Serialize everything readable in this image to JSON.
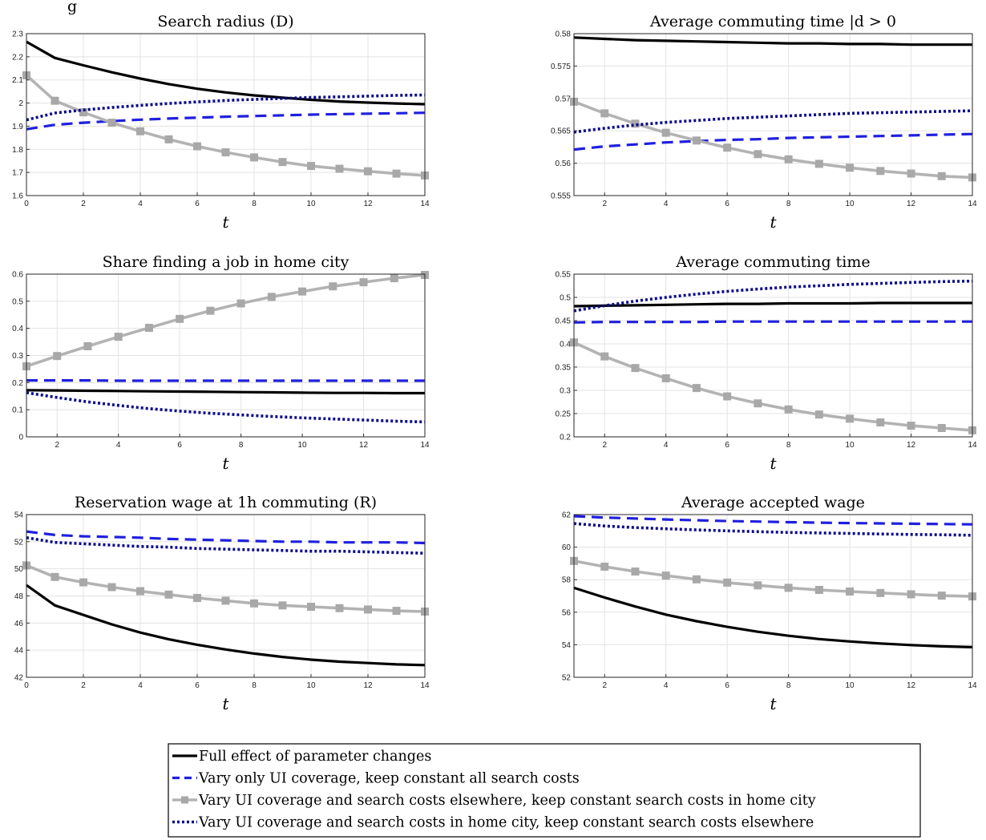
{
  "figure_title_fragment": "g",
  "chart_data": [
    {
      "type": "line",
      "title": "Search radius (D)",
      "xlabel": "t",
      "ylabel": "",
      "xlim": [
        0,
        14
      ],
      "ylim": [
        1.6,
        2.3
      ],
      "xticks": [
        0,
        2,
        4,
        6,
        8,
        10,
        12,
        14
      ],
      "yticks": [
        1.6,
        1.7,
        1.8,
        1.9,
        2,
        2.1,
        2.2,
        2.3
      ],
      "grid": true,
      "x": [
        0,
        1,
        2,
        3,
        4,
        5,
        6,
        7,
        8,
        9,
        10,
        11,
        12,
        13,
        14
      ],
      "series": [
        {
          "name": "Full effect of parameter changes",
          "style": "solid",
          "color": "#000000",
          "values": [
            2.265,
            2.195,
            2.163,
            2.133,
            2.106,
            2.082,
            2.062,
            2.046,
            2.033,
            2.023,
            2.014,
            2.007,
            2.002,
            1.998,
            1.995
          ]
        },
        {
          "name": "Vary only UI coverage, keep constant all search costs",
          "style": "dashed",
          "color": "#1f1fdf",
          "values": [
            1.887,
            1.906,
            1.915,
            1.922,
            1.928,
            1.933,
            1.937,
            1.941,
            1.944,
            1.947,
            1.95,
            1.952,
            1.954,
            1.956,
            1.958
          ]
        },
        {
          "name": "Vary UI coverage and search costs elsewhere, keep constant search costs in home city",
          "style": "markers",
          "color": "#b3b3b3",
          "values": [
            2.12,
            2.01,
            1.96,
            1.915,
            1.878,
            1.843,
            1.813,
            1.787,
            1.765,
            1.745,
            1.728,
            1.716,
            1.705,
            1.695,
            1.687
          ]
        },
        {
          "name": "Vary UI coverage and search costs in home city, keep constant search costs elsewhere",
          "style": "dotted",
          "color": "#0a0a8c",
          "values": [
            1.927,
            1.957,
            1.97,
            1.981,
            1.99,
            1.998,
            2.005,
            2.011,
            2.016,
            2.02,
            2.024,
            2.027,
            2.03,
            2.033,
            2.035
          ]
        }
      ]
    },
    {
      "type": "line",
      "title": "Average commuting time |d > 0",
      "xlabel": "t",
      "ylabel": "",
      "xlim": [
        1,
        14
      ],
      "ylim": [
        0.555,
        0.58
      ],
      "xticks": [
        2,
        4,
        6,
        8,
        10,
        12,
        14
      ],
      "yticks": [
        0.555,
        0.56,
        0.565,
        0.57,
        0.575,
        0.58
      ],
      "grid": true,
      "x": [
        1,
        2,
        3,
        4,
        5,
        6,
        7,
        8,
        9,
        10,
        11,
        12,
        13,
        14
      ],
      "series": [
        {
          "name": "Full effect of parameter changes",
          "style": "solid",
          "color": "#000000",
          "values": [
            0.5794,
            0.5792,
            0.579,
            0.5789,
            0.5788,
            0.5787,
            0.5786,
            0.5785,
            0.5785,
            0.5784,
            0.5784,
            0.5783,
            0.5783,
            0.5783
          ]
        },
        {
          "name": "Vary only UI coverage, keep constant all search costs",
          "style": "dashed",
          "color": "#1f1fdf",
          "values": [
            0.5621,
            0.5626,
            0.5629,
            0.5632,
            0.5634,
            0.5636,
            0.5637,
            0.5639,
            0.564,
            0.5641,
            0.5642,
            0.5643,
            0.5644,
            0.5645
          ]
        },
        {
          "name": "Vary UI coverage and search costs elsewhere, keep constant search costs in home city",
          "style": "markers",
          "color": "#b3b3b3",
          "values": [
            0.5695,
            0.5677,
            0.5661,
            0.5647,
            0.5635,
            0.5624,
            0.5614,
            0.5606,
            0.5599,
            0.5593,
            0.5588,
            0.5584,
            0.558,
            0.5578
          ]
        },
        {
          "name": "Vary UI coverage and search costs in home city, keep constant search costs elsewhere",
          "style": "dotted",
          "color": "#0a0a8c",
          "values": [
            0.5648,
            0.5654,
            0.5659,
            0.5663,
            0.5666,
            0.5669,
            0.5671,
            0.5673,
            0.5675,
            0.5677,
            0.5678,
            0.5679,
            0.568,
            0.5681
          ]
        }
      ]
    },
    {
      "type": "line",
      "title": "Share finding a job in home city",
      "xlabel": "t",
      "ylabel": "",
      "xlim": [
        1,
        14
      ],
      "ylim": [
        0,
        0.6
      ],
      "xticks": [
        2,
        4,
        6,
        8,
        10,
        12,
        14
      ],
      "yticks": [
        0,
        0.1,
        0.2,
        0.3,
        0.4,
        0.5,
        0.6
      ],
      "grid": true,
      "x": [
        1,
        2,
        3,
        4,
        5,
        6,
        7,
        8,
        9,
        10,
        11,
        12,
        13,
        14
      ],
      "series": [
        {
          "name": "Full effect of parameter changes",
          "style": "solid",
          "color": "#000000",
          "values": [
            0.172,
            0.171,
            0.17,
            0.169,
            0.168,
            0.167,
            0.166,
            0.165,
            0.164,
            0.163,
            0.162,
            0.162,
            0.161,
            0.161
          ]
        },
        {
          "name": "Vary only UI coverage, keep constant all search costs",
          "style": "dashed",
          "color": "#1f1fdf",
          "values": [
            0.208,
            0.208,
            0.208,
            0.207,
            0.207,
            0.207,
            0.207,
            0.207,
            0.207,
            0.207,
            0.207,
            0.207,
            0.207,
            0.207
          ]
        },
        {
          "name": "Vary UI coverage and search costs elsewhere, keep constant search costs in home city",
          "style": "markers",
          "color": "#b3b3b3",
          "values": [
            0.26,
            0.298,
            0.334,
            0.369,
            0.402,
            0.435,
            0.465,
            0.492,
            0.516,
            0.536,
            0.555,
            0.57,
            0.585,
            0.597
          ]
        },
        {
          "name": "Vary UI coverage and search costs in home city, keep constant search costs elsewhere",
          "style": "dotted",
          "color": "#0a0a8c",
          "values": [
            0.163,
            0.145,
            0.129,
            0.116,
            0.104,
            0.095,
            0.087,
            0.081,
            0.075,
            0.07,
            0.066,
            0.062,
            0.058,
            0.055
          ]
        }
      ]
    },
    {
      "type": "line",
      "title": "Average commuting time",
      "xlabel": "t",
      "ylabel": "",
      "xlim": [
        1,
        14
      ],
      "ylim": [
        0.2,
        0.55
      ],
      "xticks": [
        2,
        4,
        6,
        8,
        10,
        12,
        14
      ],
      "yticks": [
        0.2,
        0.25,
        0.3,
        0.35,
        0.4,
        0.45,
        0.5,
        0.55
      ],
      "grid": true,
      "x": [
        1,
        2,
        3,
        4,
        5,
        6,
        7,
        8,
        9,
        10,
        11,
        12,
        13,
        14
      ],
      "series": [
        {
          "name": "Full effect of parameter changes",
          "style": "solid",
          "color": "#000000",
          "values": [
            0.481,
            0.482,
            0.483,
            0.484,
            0.485,
            0.486,
            0.486,
            0.487,
            0.487,
            0.487,
            0.488,
            0.488,
            0.488,
            0.488
          ]
        },
        {
          "name": "Vary only UI coverage, keep constant all search costs",
          "style": "dashed",
          "color": "#1f1fdf",
          "values": [
            0.446,
            0.447,
            0.447,
            0.447,
            0.447,
            0.448,
            0.448,
            0.448,
            0.448,
            0.448,
            0.448,
            0.448,
            0.448,
            0.448
          ]
        },
        {
          "name": "Vary UI coverage and search costs elsewhere, keep constant search costs in home city",
          "style": "markers",
          "color": "#b3b3b3",
          "values": [
            0.403,
            0.373,
            0.348,
            0.326,
            0.305,
            0.287,
            0.272,
            0.259,
            0.248,
            0.239,
            0.231,
            0.224,
            0.219,
            0.214
          ]
        },
        {
          "name": "Vary UI coverage and search costs in home city, keep constant search costs elsewhere",
          "style": "dotted",
          "color": "#0a0a8c",
          "values": [
            0.471,
            0.482,
            0.492,
            0.5,
            0.507,
            0.513,
            0.518,
            0.522,
            0.525,
            0.528,
            0.53,
            0.532,
            0.534,
            0.535
          ]
        }
      ]
    },
    {
      "type": "line",
      "title": "Reservation wage at 1h commuting (R)",
      "xlabel": "t",
      "ylabel": "",
      "xlim": [
        0,
        14
      ],
      "ylim": [
        42,
        54
      ],
      "xticks": [
        0,
        2,
        4,
        6,
        8,
        10,
        12,
        14
      ],
      "yticks": [
        42,
        44,
        46,
        48,
        50,
        52,
        54
      ],
      "grid": true,
      "x": [
        0,
        1,
        2,
        3,
        4,
        5,
        6,
        7,
        8,
        9,
        10,
        11,
        12,
        13,
        14
      ],
      "series": [
        {
          "name": "Full effect of parameter changes",
          "style": "solid",
          "color": "#000000",
          "values": [
            48.8,
            47.3,
            46.6,
            45.9,
            45.3,
            44.8,
            44.4,
            44.05,
            43.75,
            43.5,
            43.3,
            43.15,
            43.05,
            42.95,
            42.9
          ]
        },
        {
          "name": "Vary only UI coverage, keep constant all search costs",
          "style": "dashed",
          "color": "#1f1fdf",
          "values": [
            52.75,
            52.5,
            52.4,
            52.35,
            52.3,
            52.2,
            52.15,
            52.1,
            52.05,
            52.0,
            52.0,
            51.95,
            51.95,
            51.95,
            51.9
          ]
        },
        {
          "name": "Vary UI coverage and search costs elsewhere, keep constant search costs in home city",
          "style": "markers",
          "color": "#b3b3b3",
          "values": [
            50.25,
            49.4,
            49.0,
            48.65,
            48.35,
            48.1,
            47.85,
            47.65,
            47.45,
            47.3,
            47.2,
            47.1,
            47.0,
            46.9,
            46.85
          ]
        },
        {
          "name": "Vary UI coverage and search costs in home city, keep constant search costs elsewhere",
          "style": "dotted",
          "color": "#0a0a8c",
          "values": [
            52.3,
            51.95,
            51.85,
            51.75,
            51.65,
            51.6,
            51.5,
            51.45,
            51.4,
            51.35,
            51.3,
            51.3,
            51.25,
            51.2,
            51.15
          ]
        }
      ]
    },
    {
      "type": "line",
      "title": "Average accepted wage",
      "xlabel": "t",
      "ylabel": "",
      "xlim": [
        1,
        14
      ],
      "ylim": [
        52,
        62
      ],
      "xticks": [
        2,
        4,
        6,
        8,
        10,
        12,
        14
      ],
      "yticks": [
        52,
        54,
        56,
        58,
        60,
        62
      ],
      "grid": true,
      "x": [
        1,
        2,
        3,
        4,
        5,
        6,
        7,
        8,
        9,
        10,
        11,
        12,
        13,
        14
      ],
      "series": [
        {
          "name": "Full effect of parameter changes",
          "style": "solid",
          "color": "#000000",
          "values": [
            57.5,
            56.9,
            56.35,
            55.85,
            55.45,
            55.1,
            54.8,
            54.55,
            54.35,
            54.2,
            54.08,
            53.98,
            53.9,
            53.85
          ]
        },
        {
          "name": "Vary only UI coverage, keep constant all search costs",
          "style": "dashed",
          "color": "#1f1fdf",
          "values": [
            61.9,
            61.82,
            61.76,
            61.7,
            61.65,
            61.6,
            61.57,
            61.53,
            61.5,
            61.48,
            61.46,
            61.44,
            61.42,
            61.4
          ]
        },
        {
          "name": "Vary UI coverage and search costs elsewhere, keep constant search costs in home city",
          "style": "markers",
          "color": "#b3b3b3",
          "values": [
            59.15,
            58.8,
            58.5,
            58.25,
            58.02,
            57.82,
            57.65,
            57.5,
            57.37,
            57.27,
            57.18,
            57.1,
            57.02,
            56.97
          ]
        },
        {
          "name": "Vary UI coverage and search costs in home city, keep constant search costs elsewhere",
          "style": "dotted",
          "color": "#0a0a8c",
          "values": [
            61.45,
            61.3,
            61.2,
            61.13,
            61.06,
            61.0,
            60.95,
            60.9,
            60.87,
            60.84,
            60.81,
            60.78,
            60.76,
            60.73
          ]
        }
      ]
    }
  ],
  "legend": {
    "placement": "bottom-center",
    "entries": [
      {
        "label": "Full effect of parameter changes",
        "style": "solid",
        "color": "#000000"
      },
      {
        "label": "Vary only UI coverage, keep constant all search costs",
        "style": "dashed",
        "color": "#1f1fdf"
      },
      {
        "label": "Vary UI coverage and search costs elsewhere, keep constant search costs in home city",
        "style": "markers",
        "color": "#b3b3b3"
      },
      {
        "label": "Vary UI coverage and search costs in home city, keep constant search costs elsewhere",
        "style": "dotted",
        "color": "#0a0a8c"
      }
    ]
  }
}
